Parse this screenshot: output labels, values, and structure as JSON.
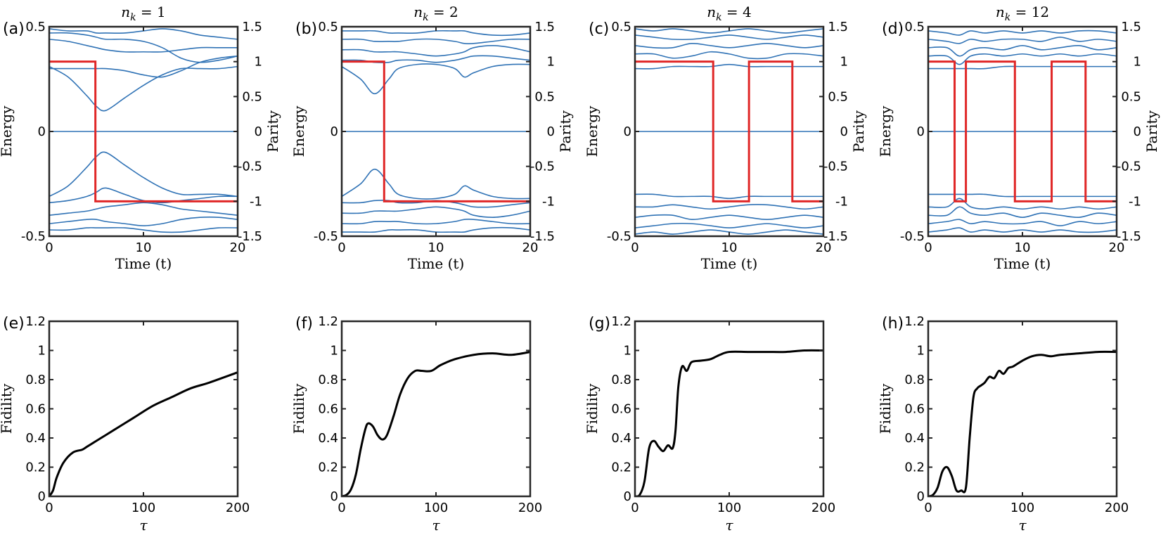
{
  "figure": {
    "colors": {
      "energy": "#2f72b5",
      "parity": "#e02727",
      "fidelity": "#000000",
      "axes": "#262626"
    }
  },
  "chart_data": [
    {
      "type": "line",
      "panel": "(a)",
      "title": "n_k = 1",
      "xlabel": "Time (t)",
      "ylabel": "Energy",
      "y2label": "Parity",
      "xlim": [
        0,
        20
      ],
      "ylim": [
        -0.5,
        0.5
      ],
      "y2lim": [
        -1.5,
        1.5
      ],
      "xticks": [
        0,
        10,
        20
      ],
      "yticks": [
        -0.5,
        0,
        0.5
      ],
      "y2ticks": [
        -1.5,
        -1,
        -0.5,
        0,
        0.5,
        1,
        1.5
      ],
      "parity_switch_times": [
        4.9
      ],
      "energy_levels": {
        "x": [
          0,
          2,
          4,
          5,
          6,
          8,
          10,
          12,
          14,
          16,
          18,
          20
        ],
        "series": [
          [
            0.31,
            0.26,
            0.17,
            0.12,
            0.1,
            0.16,
            0.22,
            0.27,
            0.3,
            0.3,
            0.3,
            0.31
          ],
          [
            0.44,
            0.43,
            0.41,
            0.4,
            0.39,
            0.38,
            0.38,
            0.38,
            0.39,
            0.4,
            0.4,
            0.4
          ],
          [
            0.47,
            0.47,
            0.46,
            0.45,
            0.44,
            0.44,
            0.43,
            0.4,
            0.35,
            0.33,
            0.34,
            0.36
          ],
          [
            0.49,
            0.48,
            0.48,
            0.47,
            0.47,
            0.47,
            0.48,
            0.49,
            0.48,
            0.46,
            0.45,
            0.44
          ],
          [
            0.3,
            0.3,
            0.3,
            0.3,
            0.3,
            0.29,
            0.27,
            0.26,
            0.29,
            0.33,
            0.35,
            0.36
          ],
          [
            0.0,
            0.0,
            0.0,
            0.0,
            0.0,
            0.0,
            0.0,
            0.0,
            0.0,
            0.0,
            0.0,
            0.0
          ],
          [
            -0.31,
            -0.26,
            -0.17,
            -0.12,
            -0.1,
            -0.16,
            -0.22,
            -0.27,
            -0.3,
            -0.3,
            -0.3,
            -0.31
          ],
          [
            -0.34,
            -0.33,
            -0.31,
            -0.29,
            -0.27,
            -0.3,
            -0.33,
            -0.34,
            -0.33,
            -0.32,
            -0.31,
            -0.31
          ],
          [
            -0.4,
            -0.39,
            -0.38,
            -0.37,
            -0.36,
            -0.35,
            -0.34,
            -0.35,
            -0.37,
            -0.38,
            -0.39,
            -0.4
          ],
          [
            -0.44,
            -0.43,
            -0.42,
            -0.42,
            -0.43,
            -0.44,
            -0.45,
            -0.44,
            -0.42,
            -0.41,
            -0.41,
            -0.42
          ],
          [
            -0.47,
            -0.47,
            -0.46,
            -0.46,
            -0.46,
            -0.46,
            -0.47,
            -0.48,
            -0.48,
            -0.47,
            -0.46,
            -0.46
          ]
        ]
      }
    },
    {
      "type": "line",
      "panel": "(b)",
      "title": "n_k = 2",
      "xlabel": "Time (t)",
      "ylabel": "Energy",
      "y2label": "Parity",
      "xlim": [
        0,
        20
      ],
      "ylim": [
        -0.5,
        0.5
      ],
      "y2lim": [
        -1.5,
        1.5
      ],
      "xticks": [
        0,
        10,
        20
      ],
      "yticks": [
        -0.5,
        0,
        0.5
      ],
      "y2ticks": [
        -1.5,
        -1,
        -0.5,
        0,
        0.5,
        1,
        1.5
      ],
      "parity_switch_times": [
        4.5
      ],
      "energy_levels": {
        "x": [
          0,
          2,
          3.5,
          5,
          6,
          8,
          10,
          12,
          13,
          14,
          16,
          18,
          20
        ],
        "series": [
          [
            0.31,
            0.25,
            0.18,
            0.25,
            0.3,
            0.32,
            0.32,
            0.3,
            0.26,
            0.28,
            0.31,
            0.32,
            0.32
          ],
          [
            0.34,
            0.34,
            0.33,
            0.33,
            0.34,
            0.34,
            0.33,
            0.34,
            0.35,
            0.36,
            0.36,
            0.35,
            0.34
          ],
          [
            0.39,
            0.39,
            0.38,
            0.38,
            0.38,
            0.37,
            0.36,
            0.37,
            0.38,
            0.4,
            0.41,
            0.4,
            0.38
          ],
          [
            0.44,
            0.44,
            0.43,
            0.43,
            0.43,
            0.44,
            0.44,
            0.43,
            0.42,
            0.42,
            0.43,
            0.44,
            0.44
          ],
          [
            0.48,
            0.48,
            0.48,
            0.47,
            0.47,
            0.47,
            0.48,
            0.48,
            0.48,
            0.47,
            0.46,
            0.46,
            0.47
          ],
          [
            0.0,
            0.0,
            0.0,
            0.0,
            0.0,
            0.0,
            0.0,
            0.0,
            0.0,
            0.0,
            0.0,
            0.0,
            0.0
          ],
          [
            -0.31,
            -0.25,
            -0.18,
            -0.25,
            -0.3,
            -0.32,
            -0.32,
            -0.3,
            -0.26,
            -0.28,
            -0.31,
            -0.32,
            -0.32
          ],
          [
            -0.34,
            -0.34,
            -0.33,
            -0.33,
            -0.34,
            -0.34,
            -0.33,
            -0.34,
            -0.35,
            -0.36,
            -0.36,
            -0.35,
            -0.34
          ],
          [
            -0.39,
            -0.39,
            -0.38,
            -0.38,
            -0.38,
            -0.37,
            -0.36,
            -0.37,
            -0.38,
            -0.4,
            -0.41,
            -0.4,
            -0.38
          ],
          [
            -0.44,
            -0.44,
            -0.43,
            -0.43,
            -0.43,
            -0.44,
            -0.44,
            -0.43,
            -0.42,
            -0.42,
            -0.43,
            -0.44,
            -0.44
          ],
          [
            -0.48,
            -0.48,
            -0.48,
            -0.47,
            -0.47,
            -0.47,
            -0.48,
            -0.48,
            -0.48,
            -0.47,
            -0.46,
            -0.46,
            -0.47
          ]
        ]
      }
    },
    {
      "type": "line",
      "panel": "(c)",
      "title": "n_k = 4",
      "xlabel": "Time (t)",
      "ylabel": "Energy",
      "y2label": "Parity",
      "xlim": [
        0,
        20
      ],
      "ylim": [
        -0.5,
        0.5
      ],
      "y2lim": [
        -1.5,
        1.5
      ],
      "xticks": [
        0,
        10,
        20
      ],
      "yticks": [
        -0.5,
        0,
        0.5
      ],
      "y2ticks": [
        -1.5,
        -1,
        -0.5,
        0,
        0.5,
        1,
        1.5
      ],
      "parity_switch_times": [
        8.3,
        12.1,
        16.7
      ],
      "energy_levels": {
        "x": [
          0,
          2,
          4,
          6,
          8,
          10,
          12,
          14,
          16,
          18,
          20
        ],
        "series": [
          [
            0.3,
            0.3,
            0.31,
            0.31,
            0.31,
            0.32,
            0.31,
            0.31,
            0.31,
            0.31,
            0.31
          ],
          [
            0.37,
            0.37,
            0.35,
            0.36,
            0.38,
            0.37,
            0.35,
            0.35,
            0.37,
            0.37,
            0.36
          ],
          [
            0.41,
            0.4,
            0.4,
            0.42,
            0.41,
            0.4,
            0.41,
            0.42,
            0.41,
            0.4,
            0.41
          ],
          [
            0.46,
            0.45,
            0.44,
            0.44,
            0.45,
            0.46,
            0.45,
            0.44,
            0.45,
            0.46,
            0.45
          ],
          [
            0.49,
            0.48,
            0.49,
            0.48,
            0.47,
            0.48,
            0.49,
            0.48,
            0.47,
            0.48,
            0.49
          ],
          [
            0.0,
            0.0,
            0.0,
            0.0,
            0.0,
            0.0,
            0.0,
            0.0,
            0.0,
            0.0,
            0.0
          ],
          [
            -0.3,
            -0.3,
            -0.31,
            -0.31,
            -0.31,
            -0.32,
            -0.31,
            -0.31,
            -0.31,
            -0.31,
            -0.31
          ],
          [
            -0.36,
            -0.36,
            -0.35,
            -0.36,
            -0.37,
            -0.36,
            -0.35,
            -0.35,
            -0.36,
            -0.37,
            -0.36
          ],
          [
            -0.41,
            -0.4,
            -0.4,
            -0.42,
            -0.41,
            -0.4,
            -0.41,
            -0.42,
            -0.41,
            -0.4,
            -0.41
          ],
          [
            -0.46,
            -0.45,
            -0.44,
            -0.44,
            -0.45,
            -0.46,
            -0.45,
            -0.44,
            -0.45,
            -0.46,
            -0.45
          ],
          [
            -0.49,
            -0.48,
            -0.49,
            -0.48,
            -0.47,
            -0.48,
            -0.49,
            -0.48,
            -0.47,
            -0.48,
            -0.49
          ]
        ]
      }
    },
    {
      "type": "line",
      "panel": "(d)",
      "title": "n_k = 12",
      "xlabel": "Time (t)",
      "ylabel": "Energy",
      "y2label": "Parity",
      "xlim": [
        0,
        20
      ],
      "ylim": [
        -0.5,
        0.5
      ],
      "y2lim": [
        -1.5,
        1.5
      ],
      "xticks": [
        0,
        10,
        20
      ],
      "yticks": [
        -0.5,
        0,
        0.5
      ],
      "y2ticks": [
        -1.5,
        -1,
        -0.5,
        0,
        0.5,
        1,
        1.5
      ],
      "parity_switch_times": [
        2.8,
        4.0,
        9.2,
        13.1,
        16.7
      ],
      "energy_levels": {
        "x": [
          0,
          2,
          3.3,
          4.5,
          6,
          8,
          10,
          12,
          14,
          16,
          18,
          20
        ],
        "series": [
          [
            0.3,
            0.3,
            0.3,
            0.3,
            0.3,
            0.31,
            0.31,
            0.31,
            0.31,
            0.31,
            0.31,
            0.31
          ],
          [
            0.36,
            0.36,
            0.32,
            0.36,
            0.37,
            0.36,
            0.37,
            0.36,
            0.37,
            0.36,
            0.37,
            0.36
          ],
          [
            0.4,
            0.4,
            0.36,
            0.39,
            0.4,
            0.39,
            0.41,
            0.39,
            0.4,
            0.41,
            0.39,
            0.4
          ],
          [
            0.44,
            0.43,
            0.42,
            0.44,
            0.43,
            0.44,
            0.44,
            0.43,
            0.45,
            0.43,
            0.44,
            0.43
          ],
          [
            0.48,
            0.47,
            0.46,
            0.48,
            0.47,
            0.48,
            0.47,
            0.48,
            0.47,
            0.48,
            0.48,
            0.47
          ],
          [
            0.0,
            0.0,
            0.0,
            0.0,
            0.0,
            0.0,
            0.0,
            0.0,
            0.0,
            0.0,
            0.0,
            0.0
          ],
          [
            -0.3,
            -0.3,
            -0.3,
            -0.3,
            -0.3,
            -0.31,
            -0.31,
            -0.31,
            -0.31,
            -0.31,
            -0.31,
            -0.31
          ],
          [
            -0.36,
            -0.36,
            -0.32,
            -0.36,
            -0.37,
            -0.36,
            -0.37,
            -0.36,
            -0.37,
            -0.36,
            -0.37,
            -0.36
          ],
          [
            -0.4,
            -0.4,
            -0.36,
            -0.39,
            -0.4,
            -0.39,
            -0.41,
            -0.39,
            -0.4,
            -0.41,
            -0.39,
            -0.4
          ],
          [
            -0.44,
            -0.43,
            -0.42,
            -0.44,
            -0.43,
            -0.44,
            -0.44,
            -0.43,
            -0.45,
            -0.43,
            -0.44,
            -0.43
          ],
          [
            -0.48,
            -0.47,
            -0.46,
            -0.48,
            -0.47,
            -0.48,
            -0.47,
            -0.48,
            -0.47,
            -0.48,
            -0.48,
            -0.47
          ]
        ]
      }
    },
    {
      "type": "line",
      "panel": "(e)",
      "xlabel": "τ",
      "ylabel": "Fidility",
      "xlim": [
        0,
        200
      ],
      "ylim": [
        0,
        1.2
      ],
      "xticks": [
        0,
        100,
        200
      ],
      "yticks": [
        0,
        0.2,
        0.4,
        0.6,
        0.8,
        1,
        1.2
      ],
      "x": [
        0,
        4,
        8,
        15,
        25,
        35,
        40,
        50,
        60,
        75,
        90,
        110,
        130,
        150,
        170,
        200
      ],
      "y": [
        0,
        0.04,
        0.13,
        0.23,
        0.3,
        0.32,
        0.34,
        0.38,
        0.42,
        0.48,
        0.54,
        0.62,
        0.68,
        0.74,
        0.78,
        0.85
      ]
    },
    {
      "type": "line",
      "panel": "(f)",
      "xlabel": "τ",
      "ylabel": "Fidility",
      "xlim": [
        0,
        200
      ],
      "ylim": [
        0,
        1.2
      ],
      "xticks": [
        0,
        100,
        200
      ],
      "yticks": [
        0,
        0.2,
        0.4,
        0.6,
        0.8,
        1,
        1.2
      ],
      "x": [
        0,
        5,
        10,
        15,
        20,
        25,
        28,
        33,
        38,
        43,
        48,
        55,
        62,
        70,
        78,
        85,
        95,
        105,
        120,
        140,
        160,
        180,
        200
      ],
      "y": [
        0,
        0.01,
        0.05,
        0.15,
        0.32,
        0.46,
        0.5,
        0.48,
        0.42,
        0.39,
        0.42,
        0.55,
        0.7,
        0.81,
        0.86,
        0.86,
        0.86,
        0.9,
        0.94,
        0.97,
        0.98,
        0.97,
        0.99
      ]
    },
    {
      "type": "line",
      "panel": "(g)",
      "xlabel": "τ",
      "ylabel": "Fidility",
      "xlim": [
        0,
        200
      ],
      "ylim": [
        0,
        1.2
      ],
      "xticks": [
        0,
        100,
        200
      ],
      "yticks": [
        0,
        0.2,
        0.4,
        0.6,
        0.8,
        1,
        1.2
      ],
      "x": [
        0,
        5,
        10,
        15,
        20,
        25,
        30,
        35,
        40,
        43,
        46,
        50,
        55,
        60,
        70,
        80,
        90,
        100,
        120,
        140,
        160,
        180,
        200
      ],
      "y": [
        0,
        0.01,
        0.1,
        0.33,
        0.38,
        0.34,
        0.31,
        0.35,
        0.33,
        0.45,
        0.75,
        0.89,
        0.86,
        0.92,
        0.93,
        0.94,
        0.97,
        0.99,
        0.99,
        0.99,
        0.99,
        1.0,
        1.0
      ]
    },
    {
      "type": "line",
      "panel": "(h)",
      "xlabel": "τ",
      "ylabel": "Fidility",
      "xlim": [
        0,
        200
      ],
      "ylim": [
        0,
        1.2
      ],
      "xticks": [
        0,
        100,
        200
      ],
      "yticks": [
        0,
        0.2,
        0.4,
        0.6,
        0.8,
        1,
        1.2
      ],
      "x": [
        0,
        5,
        10,
        15,
        20,
        25,
        30,
        35,
        40,
        44,
        48,
        52,
        56,
        60,
        65,
        70,
        75,
        80,
        85,
        90,
        100,
        110,
        120,
        130,
        140,
        160,
        180,
        200
      ],
      "y": [
        0,
        0.01,
        0.06,
        0.17,
        0.2,
        0.14,
        0.04,
        0.04,
        0.06,
        0.4,
        0.68,
        0.74,
        0.76,
        0.78,
        0.82,
        0.81,
        0.86,
        0.84,
        0.88,
        0.89,
        0.93,
        0.96,
        0.97,
        0.96,
        0.97,
        0.98,
        0.99,
        0.99
      ]
    }
  ]
}
